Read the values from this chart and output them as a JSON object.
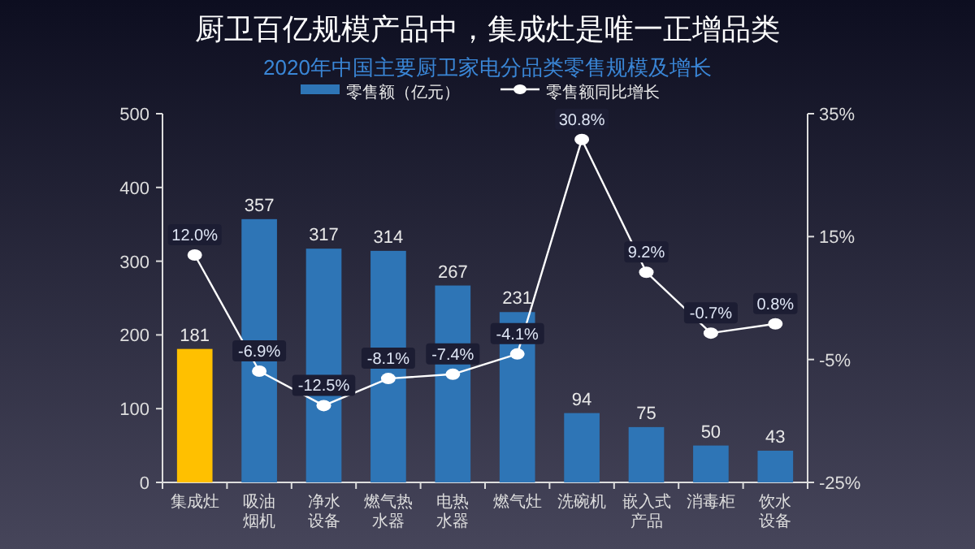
{
  "chart_data": {
    "type": "bar",
    "title": "厨卫百亿规模产品中，集成灶是唯一正增品类",
    "subtitle": "2020年中国主要厨卫家电分品类零售规模及增长",
    "categories": [
      "集成灶",
      "吸油烟机",
      "净水设备",
      "燃气热水器",
      "电热水器",
      "燃气灶",
      "洗碗机",
      "嵌入式产品",
      "消毒柜",
      "饮水设备"
    ],
    "series": [
      {
        "name": "零售额（亿元）",
        "color": "#2e75b6",
        "colors": [
          "#ffc000",
          "#2e75b6",
          "#2e75b6",
          "#2e75b6",
          "#2e75b6",
          "#2e75b6",
          "#2e75b6",
          "#2e75b6",
          "#2e75b6",
          "#2e75b6"
        ],
        "values": [
          181,
          357,
          317,
          314,
          267,
          231,
          94,
          75,
          50,
          43
        ]
      },
      {
        "name": "零售额同比增长",
        "type": "line",
        "axis": "y2",
        "color": "#ffffff",
        "marker": "circle",
        "values": [
          12.0,
          -6.9,
          -12.5,
          -8.1,
          -7.4,
          -4.1,
          30.8,
          9.2,
          -0.7,
          0.8
        ],
        "value_labels": [
          "12.0%",
          "-6.9%",
          "-12.5%",
          "-8.1%",
          "-7.4%",
          "-4.1%",
          "30.8%",
          "9.2%",
          "-0.7%",
          "0.8%"
        ]
      }
    ],
    "ylim": [
      0,
      500
    ],
    "yticks": [
      0,
      100,
      200,
      300,
      400,
      500
    ],
    "y2lim": [
      -25,
      35
    ],
    "y2ticks": [
      {
        "value": -25,
        "label": "-25%"
      },
      {
        "value": -5,
        "label": "-5%"
      },
      {
        "value": 15,
        "label": "15%"
      },
      {
        "value": 35,
        "label": "35%"
      }
    ],
    "data_labels": true,
    "legend": "top",
    "grid": false
  }
}
